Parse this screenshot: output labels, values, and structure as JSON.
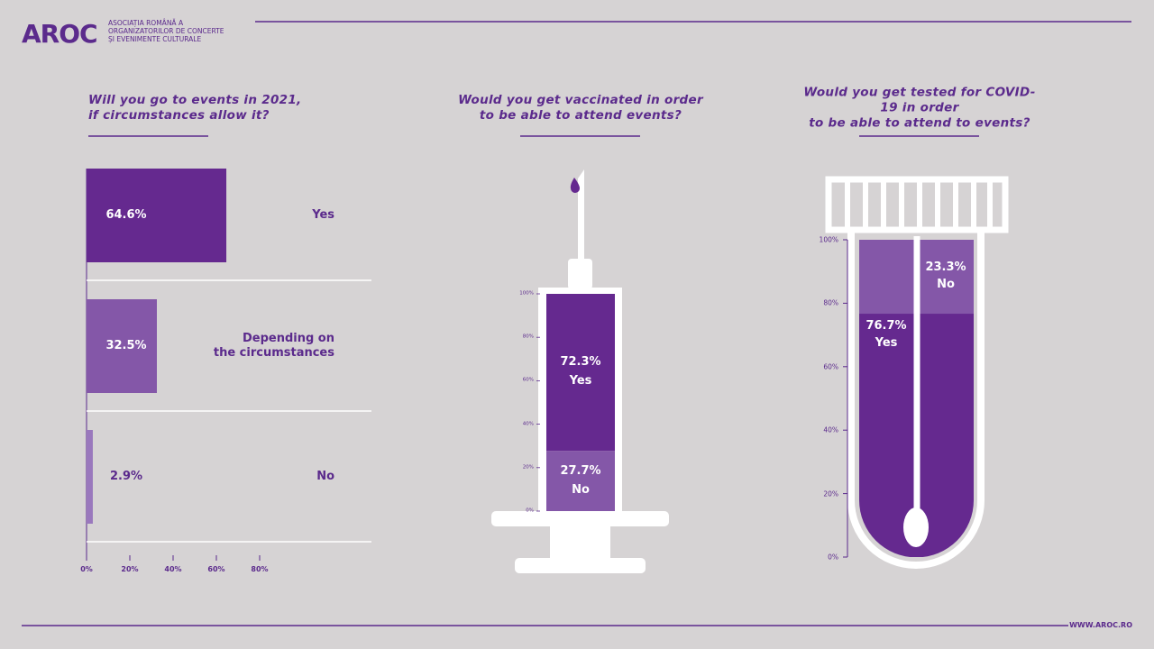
{
  "header": {
    "logo": "AROC",
    "org_name": "ASOCIAȚIA ROMÂNĂ A\nORGANIZATORILOR DE CONCERTE\nȘI EVENIMENTE CULTURALE"
  },
  "footer": {
    "url": "WWW.AROC.RO"
  },
  "chart_data": [
    {
      "type": "bar",
      "orientation": "horizontal",
      "title": "Will you go to events in 2021,\nif circumstances allow it?",
      "categories": [
        "Yes",
        "Depending on\nthe circumstances",
        "No"
      ],
      "values": [
        64.6,
        32.5,
        2.9
      ],
      "value_labels": [
        "64.6%",
        "32.5%",
        "2.9%"
      ],
      "colors": [
        "#65298f",
        "#8457a8",
        "#9a78bd"
      ],
      "xlim": [
        0,
        80
      ],
      "xticks": [
        {
          "value": 0,
          "label": "0%"
        },
        {
          "value": 20,
          "label": "20%"
        },
        {
          "value": 40,
          "label": "40%"
        },
        {
          "value": 60,
          "label": "60%"
        },
        {
          "value": 80,
          "label": "80%"
        }
      ]
    },
    {
      "type": "syringe",
      "title": "Would you get vaccinated in order\nto be able to attend events?",
      "series": [
        {
          "name": "No",
          "color": "#8457a8",
          "values": [
            27.7
          ],
          "value_labels": [
            "27.7%"
          ]
        },
        {
          "name": "Yes",
          "color": "#65298f",
          "values": [
            72.3
          ],
          "value_labels": [
            "72.3%"
          ]
        }
      ],
      "ylim": [
        0,
        100
      ],
      "yticks": [
        {
          "value": 0,
          "label": "0%"
        },
        {
          "value": 20,
          "label": "20%"
        },
        {
          "value": 40,
          "label": "40%"
        },
        {
          "value": 60,
          "label": "60%"
        },
        {
          "value": 80,
          "label": "80%"
        },
        {
          "value": 100,
          "label": "100%"
        }
      ]
    },
    {
      "type": "test-tube",
      "title": "Would you get tested for COVID-19 in order\nto be able to attend to events?",
      "series": [
        {
          "name": "Yes",
          "color": "#65298f",
          "values": [
            76.7
          ],
          "value_labels": [
            "76.7%"
          ]
        },
        {
          "name": "No",
          "color": "#8457a8",
          "values": [
            23.3
          ],
          "value_labels": [
            "23.3%"
          ]
        }
      ],
      "ylim": [
        0,
        100
      ],
      "yticks": [
        {
          "value": 0,
          "label": "0%"
        },
        {
          "value": 20,
          "label": "20%"
        },
        {
          "value": 40,
          "label": "40%"
        },
        {
          "value": 60,
          "label": "60%"
        },
        {
          "value": 80,
          "label": "80%"
        },
        {
          "value": 100,
          "label": "100%"
        }
      ]
    }
  ]
}
